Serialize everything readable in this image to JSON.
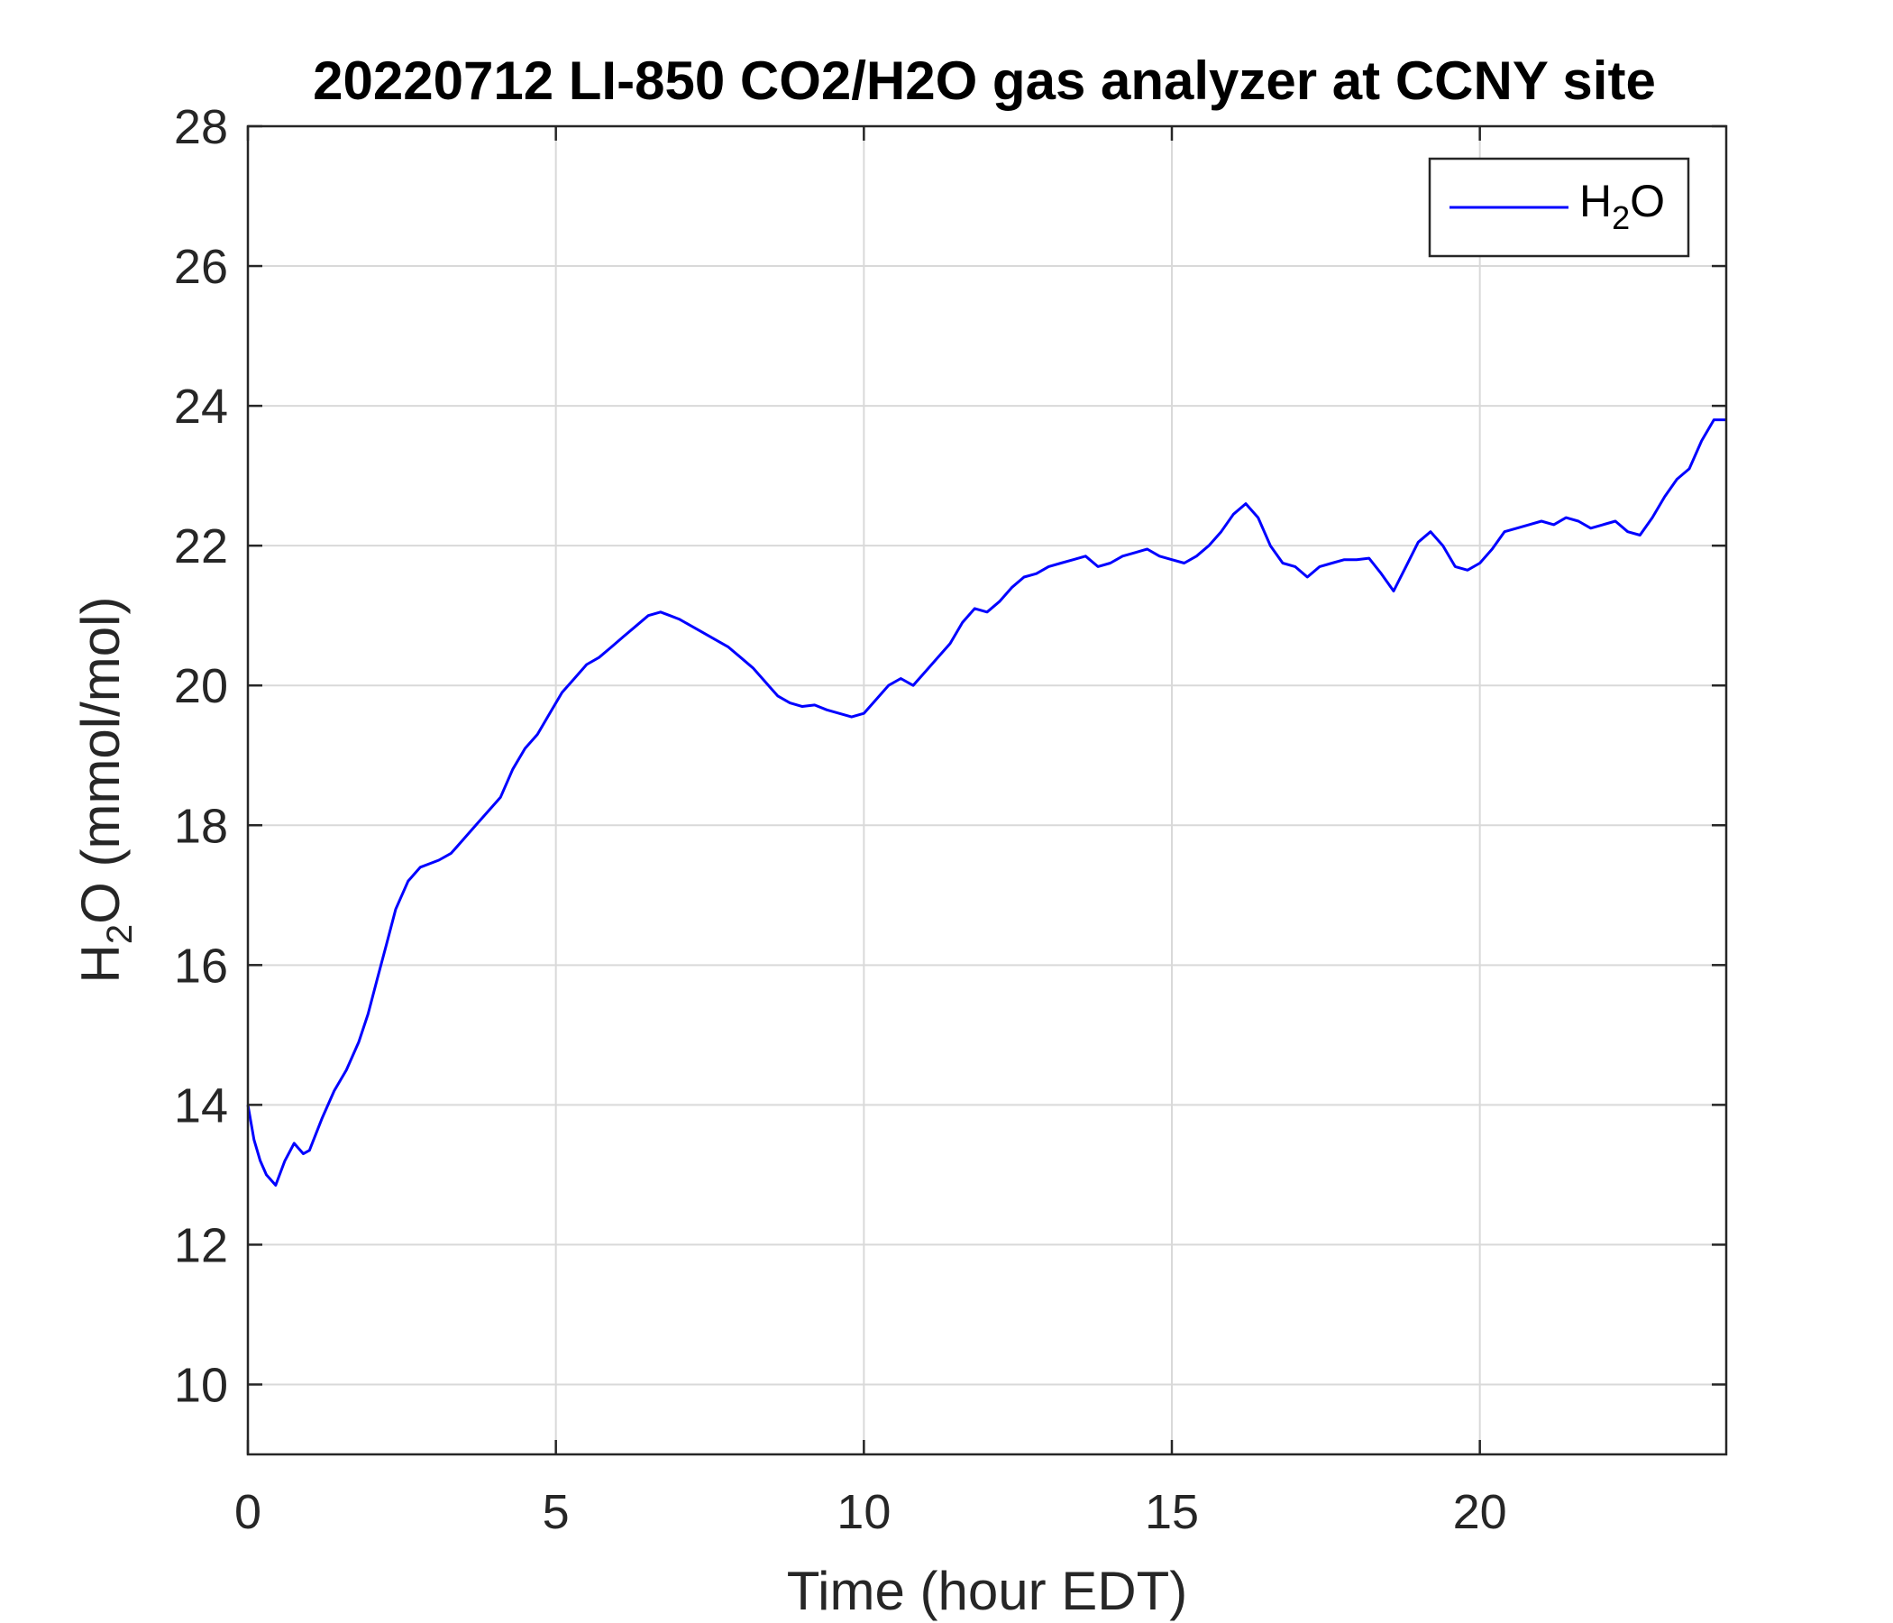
{
  "chart_data": {
    "type": "line",
    "title": "20220712 LI-850 CO2/H2O gas analyzer at CCNY site",
    "xlabel": "Time (hour EDT)",
    "ylabel": {
      "pre": "H",
      "sub": "2",
      "post": "O (mmol/mol)"
    },
    "xlim": [
      0,
      24
    ],
    "ylim": [
      9,
      28
    ],
    "xticks": [
      0,
      5,
      10,
      15,
      20
    ],
    "yticks": [
      10,
      12,
      14,
      16,
      18,
      20,
      22,
      24,
      26,
      28
    ],
    "grid": true,
    "legend_position": "top-right",
    "series": [
      {
        "legend": {
          "pre": "H",
          "sub": "2",
          "post": "O"
        },
        "color": "#0000FF",
        "x": [
          0,
          0.1,
          0.2,
          0.3,
          0.45,
          0.6,
          0.75,
          0.9,
          1.0,
          1.2,
          1.4,
          1.6,
          1.8,
          1.95,
          2.1,
          2.25,
          2.4,
          2.6,
          2.8,
          2.95,
          3.1,
          3.3,
          3.5,
          3.7,
          3.9,
          4.1,
          4.3,
          4.5,
          4.7,
          4.9,
          5.1,
          5.3,
          5.5,
          5.7,
          5.9,
          6.1,
          6.3,
          6.5,
          6.7,
          6.85,
          7.0,
          7.2,
          7.4,
          7.6,
          7.8,
          8.0,
          8.2,
          8.4,
          8.6,
          8.8,
          9.0,
          9.2,
          9.4,
          9.6,
          9.8,
          10.0,
          10.2,
          10.4,
          10.6,
          10.8,
          11.0,
          11.2,
          11.4,
          11.6,
          11.8,
          12.0,
          12.2,
          12.4,
          12.6,
          12.8,
          13.0,
          13.2,
          13.4,
          13.6,
          13.8,
          14.0,
          14.2,
          14.4,
          14.6,
          14.8,
          15.0,
          15.2,
          15.4,
          15.6,
          15.8,
          16.0,
          16.2,
          16.4,
          16.6,
          16.8,
          17.0,
          17.2,
          17.4,
          17.6,
          17.8,
          18.0,
          18.2,
          18.4,
          18.6,
          18.8,
          19.0,
          19.2,
          19.4,
          19.6,
          19.8,
          20.0,
          20.2,
          20.4,
          20.6,
          20.8,
          21.0,
          21.2,
          21.4,
          21.6,
          21.8,
          22.0,
          22.2,
          22.4,
          22.6,
          22.8,
          23.0,
          23.2,
          23.4,
          23.6,
          23.8,
          24.0
        ],
        "y": [
          14.0,
          13.5,
          13.2,
          13.0,
          12.85,
          13.2,
          13.45,
          13.3,
          13.35,
          13.8,
          14.2,
          14.5,
          14.9,
          15.3,
          15.8,
          16.3,
          16.8,
          17.2,
          17.4,
          17.45,
          17.5,
          17.6,
          17.8,
          18.0,
          18.2,
          18.4,
          18.8,
          19.1,
          19.3,
          19.6,
          19.9,
          20.1,
          20.3,
          20.4,
          20.55,
          20.7,
          20.85,
          21.0,
          21.05,
          21.0,
          20.95,
          20.85,
          20.75,
          20.65,
          20.55,
          20.4,
          20.25,
          20.05,
          19.85,
          19.75,
          19.7,
          19.72,
          19.65,
          19.6,
          19.55,
          19.6,
          19.8,
          20.0,
          20.1,
          20.0,
          20.2,
          20.4,
          20.6,
          20.9,
          21.1,
          21.05,
          21.2,
          21.4,
          21.55,
          21.6,
          21.7,
          21.75,
          21.8,
          21.85,
          21.7,
          21.75,
          21.85,
          21.9,
          21.95,
          21.85,
          21.8,
          21.75,
          21.85,
          22.0,
          22.2,
          22.45,
          22.6,
          22.4,
          22.0,
          21.75,
          21.7,
          21.55,
          21.7,
          21.75,
          21.8,
          21.8,
          21.82,
          21.6,
          21.35,
          21.7,
          22.05,
          22.2,
          22.0,
          21.7,
          21.65,
          21.75,
          21.95,
          22.2,
          22.25,
          22.3,
          22.35,
          22.3,
          22.4,
          22.35,
          22.25,
          22.3,
          22.35,
          22.2,
          22.15,
          22.4,
          22.7,
          22.95,
          23.1,
          23.5,
          23.8,
          23.8
        ]
      }
    ]
  }
}
